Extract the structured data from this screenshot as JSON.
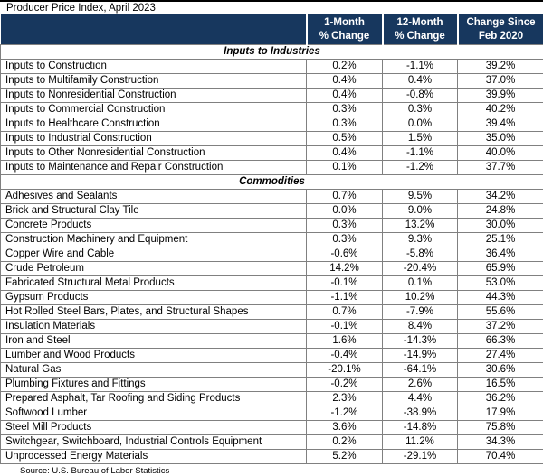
{
  "colors": {
    "header_bg": "#17375e",
    "header_text": "#ffffff",
    "grid_line": "#808080",
    "top_rule": "#000000"
  },
  "chart_data": {
    "type": "table",
    "title": "Producer Price Index, April 2023",
    "source": "Source: U.S. Bureau of Labor Statistics",
    "columns": [
      {
        "label": ""
      },
      {
        "line1": "1-Month",
        "line2": "% Change"
      },
      {
        "line1": "12-Month",
        "line2": "% Change"
      },
      {
        "line1": "Change Since",
        "line2": "Feb 2020"
      }
    ],
    "sections": [
      {
        "label": "Inputs to Industries",
        "rows": [
          {
            "name": "Inputs to Construction",
            "one_month": "0.2%",
            "twelve_month": "-1.1%",
            "since_feb_2020": "39.2%"
          },
          {
            "name": "Inputs to Multifamily Construction",
            "one_month": "0.4%",
            "twelve_month": "0.4%",
            "since_feb_2020": "37.0%"
          },
          {
            "name": "Inputs to Nonresidential Construction",
            "one_month": "0.4%",
            "twelve_month": "-0.8%",
            "since_feb_2020": "39.9%"
          },
          {
            "name": "Inputs to Commercial Construction",
            "one_month": "0.3%",
            "twelve_month": "0.3%",
            "since_feb_2020": "40.2%"
          },
          {
            "name": "Inputs to Healthcare Construction",
            "one_month": "0.3%",
            "twelve_month": "0.0%",
            "since_feb_2020": "39.4%"
          },
          {
            "name": "Inputs to Industrial Construction",
            "one_month": "0.5%",
            "twelve_month": "1.5%",
            "since_feb_2020": "35.0%"
          },
          {
            "name": "Inputs to Other Nonresidential Construction",
            "one_month": "0.4%",
            "twelve_month": "-1.1%",
            "since_feb_2020": "40.0%"
          },
          {
            "name": "Inputs to Maintenance and Repair Construction",
            "one_month": "0.1%",
            "twelve_month": "-1.2%",
            "since_feb_2020": "37.7%"
          }
        ]
      },
      {
        "label": "Commodities",
        "rows": [
          {
            "name": "Adhesives and Sealants",
            "one_month": "0.7%",
            "twelve_month": "9.5%",
            "since_feb_2020": "34.2%"
          },
          {
            "name": "Brick and Structural Clay Tile",
            "one_month": "0.0%",
            "twelve_month": "9.0%",
            "since_feb_2020": "24.8%"
          },
          {
            "name": "Concrete Products",
            "one_month": "0.3%",
            "twelve_month": "13.2%",
            "since_feb_2020": "30.0%"
          },
          {
            "name": "Construction Machinery and Equipment",
            "one_month": "0.3%",
            "twelve_month": "9.3%",
            "since_feb_2020": "25.1%"
          },
          {
            "name": "Copper Wire and Cable",
            "one_month": "-0.6%",
            "twelve_month": "-5.8%",
            "since_feb_2020": "36.4%"
          },
          {
            "name": "Crude Petroleum",
            "one_month": "14.2%",
            "twelve_month": "-20.4%",
            "since_feb_2020": "65.9%"
          },
          {
            "name": "Fabricated Structural Metal Products",
            "one_month": "-0.1%",
            "twelve_month": "0.1%",
            "since_feb_2020": "53.0%"
          },
          {
            "name": "Gypsum Products",
            "one_month": "-1.1%",
            "twelve_month": "10.2%",
            "since_feb_2020": "44.3%"
          },
          {
            "name": "Hot Rolled Steel Bars, Plates, and Structural Shapes",
            "one_month": "0.7%",
            "twelve_month": "-7.9%",
            "since_feb_2020": "55.6%"
          },
          {
            "name": "Insulation Materials",
            "one_month": "-0.1%",
            "twelve_month": "8.4%",
            "since_feb_2020": "37.2%"
          },
          {
            "name": "Iron and Steel",
            "one_month": "1.6%",
            "twelve_month": "-14.3%",
            "since_feb_2020": "66.3%"
          },
          {
            "name": "Lumber and Wood Products",
            "one_month": "-0.4%",
            "twelve_month": "-14.9%",
            "since_feb_2020": "27.4%"
          },
          {
            "name": "Natural Gas",
            "one_month": "-20.1%",
            "twelve_month": "-64.1%",
            "since_feb_2020": "30.6%"
          },
          {
            "name": "Plumbing Fixtures and Fittings",
            "one_month": "-0.2%",
            "twelve_month": "2.6%",
            "since_feb_2020": "16.5%"
          },
          {
            "name": "Prepared Asphalt, Tar Roofing and Siding Products",
            "one_month": "2.3%",
            "twelve_month": "4.4%",
            "since_feb_2020": "36.2%"
          },
          {
            "name": "Softwood Lumber",
            "one_month": "-1.2%",
            "twelve_month": "-38.9%",
            "since_feb_2020": "17.9%"
          },
          {
            "name": "Steel Mill Products",
            "one_month": "3.6%",
            "twelve_month": "-14.8%",
            "since_feb_2020": "75.8%"
          },
          {
            "name": "Switchgear, Switchboard, Industrial Controls Equipment",
            "one_month": "0.2%",
            "twelve_month": "11.2%",
            "since_feb_2020": "34.3%"
          },
          {
            "name": "Unprocessed Energy Materials",
            "one_month": "5.2%",
            "twelve_month": "-29.1%",
            "since_feb_2020": "70.4%"
          }
        ]
      }
    ]
  }
}
